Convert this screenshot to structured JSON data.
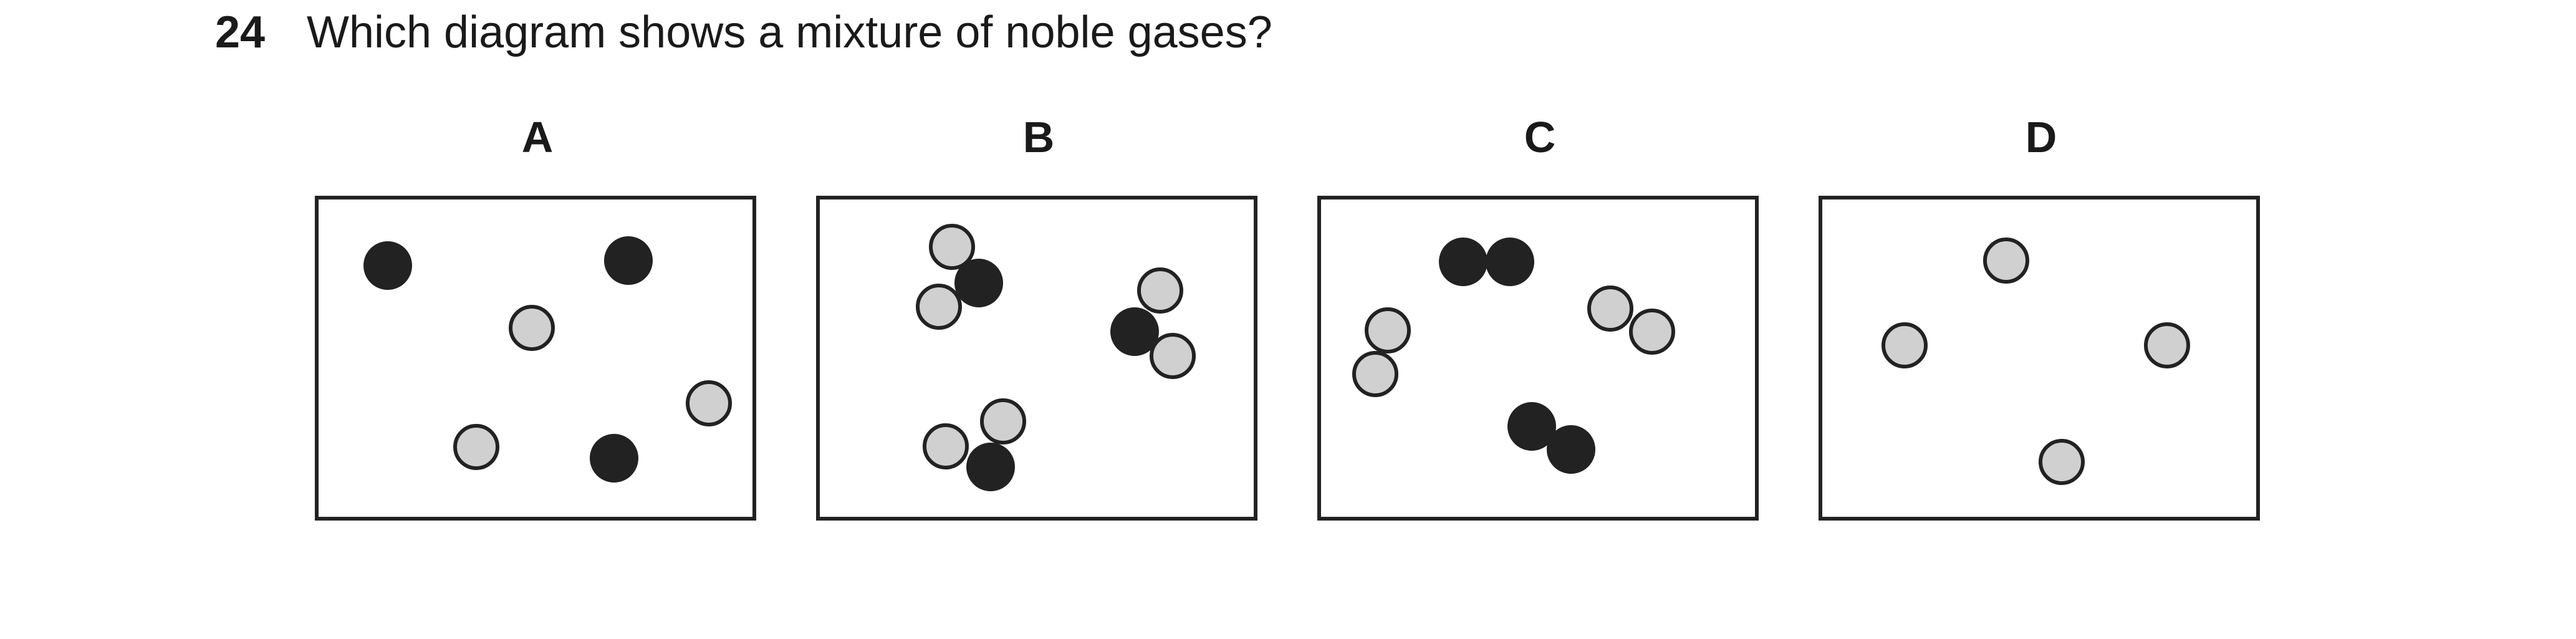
{
  "question": {
    "number": "24",
    "text": "Which diagram shows a mixture of noble gases?"
  },
  "options": [
    {
      "label": "A"
    },
    {
      "label": "B"
    },
    {
      "label": "C"
    },
    {
      "label": "D"
    }
  ],
  "colors": {
    "dark_atom": "#222222",
    "light_atom": "#d0d0d0",
    "outline": "#222222"
  }
}
